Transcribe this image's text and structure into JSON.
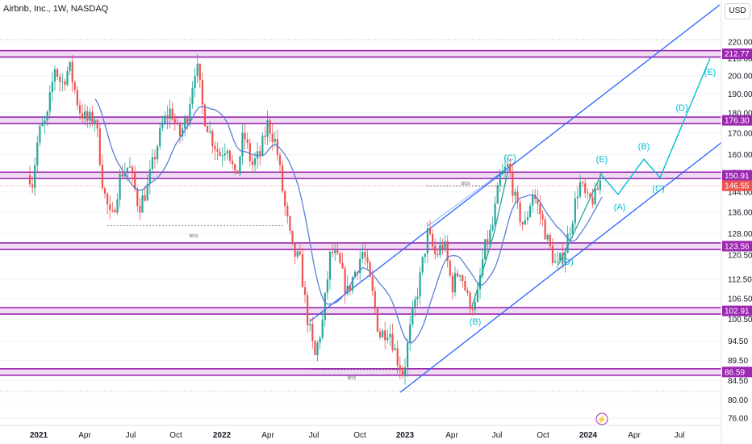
{
  "header": {
    "title": "Airbnb, Inc., 1W, NASDAQ",
    "currency": "USD"
  },
  "chart_data": {
    "type": "candlestick",
    "y_ticks": [
      76,
      80,
      84.5,
      89.5,
      94.5,
      100.5,
      106.5,
      112.5,
      120.5,
      128,
      136,
      144,
      152,
      160,
      170,
      180,
      190,
      200,
      210,
      220
    ],
    "x_ticks": [
      "2021",
      "Apr",
      "Jul",
      "Oct",
      "2022",
      "Apr",
      "Jul",
      "Oct",
      "2023",
      "Apr",
      "Jul",
      "Oct",
      "2024",
      "Apr",
      "Jul"
    ],
    "ylim": [
      74,
      233
    ],
    "price_levels": [
      212.77,
      176.3,
      150.91,
      123.56,
      102.91,
      86.59
    ],
    "last_price": 146.55,
    "bos_labels": [
      "BOS",
      "BOS",
      "BOS"
    ],
    "wave_labels": [
      "(C)",
      "(B)",
      "(E)",
      "(D)",
      "(A)",
      "(B)",
      "(C)",
      "(D)",
      "(E)"
    ],
    "colors": {
      "up": "#26a69a",
      "down": "#ef5350",
      "level": "#9c27b0",
      "channel": "#2962ff",
      "ma": "#5b7fd6",
      "wave": "#00bcd4"
    }
  }
}
